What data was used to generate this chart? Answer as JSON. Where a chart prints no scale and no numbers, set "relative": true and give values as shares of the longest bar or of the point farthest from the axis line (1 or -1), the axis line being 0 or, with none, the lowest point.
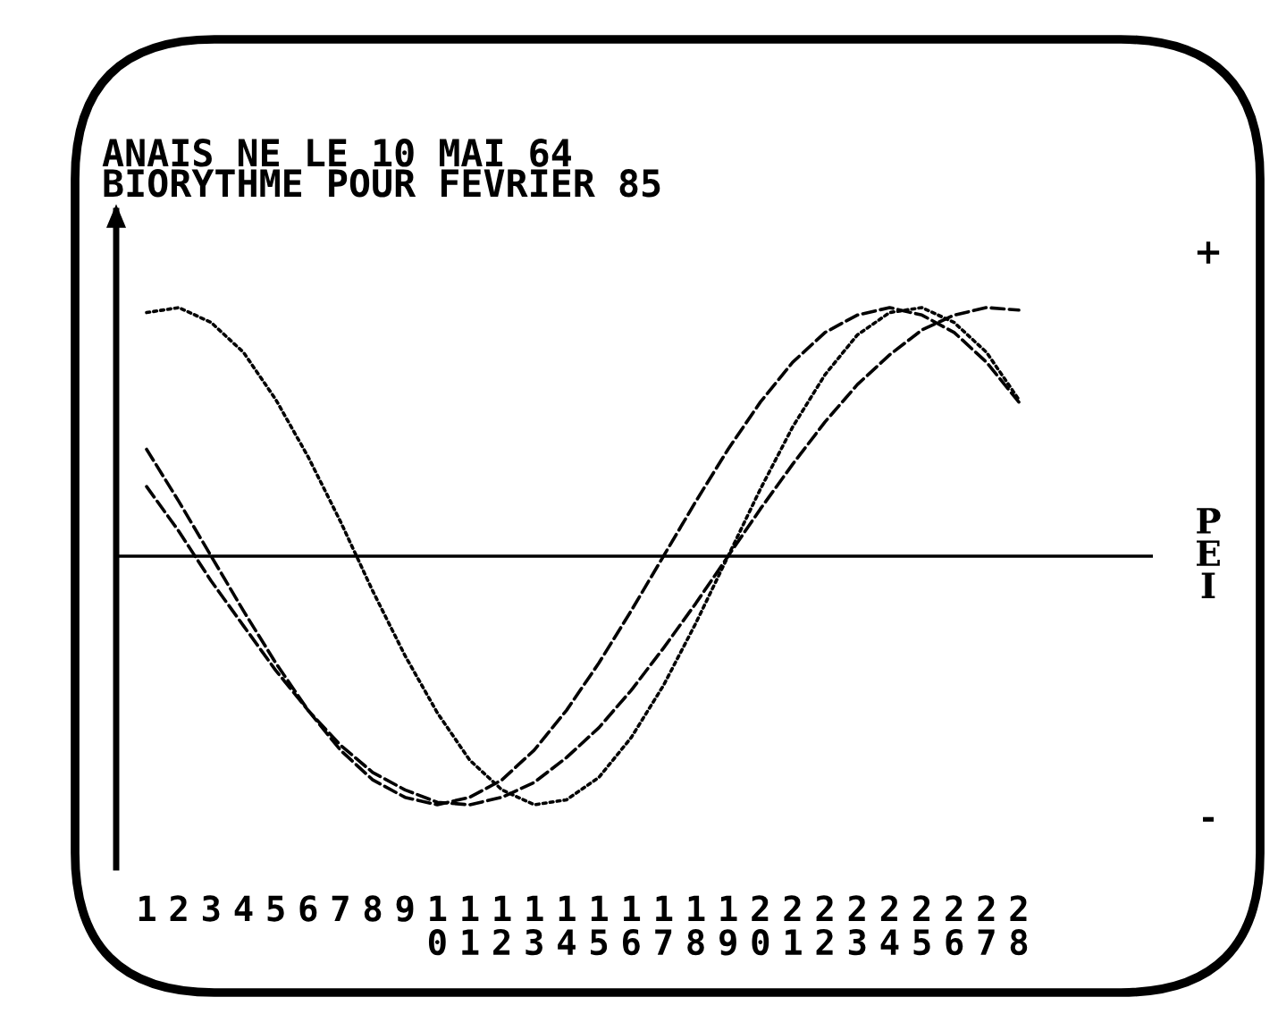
{
  "chart_data": {
    "type": "line",
    "title": "ANAIS NE LE 10 MAI 64",
    "subtitle": "BIORYTHME POUR FEVRIER 85",
    "categories": [
      "1",
      "2",
      "3",
      "4",
      "5",
      "6",
      "7",
      "8",
      "9",
      "10",
      "11",
      "12",
      "13",
      "14",
      "15",
      "16",
      "17",
      "18",
      "19",
      "20",
      "21",
      "22",
      "23",
      "24",
      "25",
      "26",
      "27",
      "28"
    ],
    "relative": true,
    "series": [
      {
        "color": "#000000",
        "line_style": "dotted",
        "values": [
          0.98,
          1.0,
          0.94,
          0.82,
          0.63,
          0.4,
          0.14,
          -0.14,
          -0.4,
          -0.63,
          -0.82,
          -0.94,
          -1.0,
          -0.98,
          -0.89,
          -0.73,
          -0.52,
          -0.27,
          0,
          0.27,
          0.52,
          0.73,
          0.89,
          0.98,
          1.0,
          0.94,
          0.82,
          0.63
        ]
      },
      {
        "color": "#000000",
        "line_style": "dashed",
        "values": [
          0.43,
          0.22,
          0,
          -0.22,
          -0.43,
          -0.62,
          -0.78,
          -0.9,
          -0.97,
          -1.0,
          -0.97,
          -0.9,
          -0.78,
          -0.62,
          -0.43,
          -0.22,
          0,
          0.22,
          0.43,
          0.62,
          0.78,
          0.9,
          0.97,
          1.0,
          0.97,
          0.9,
          0.78,
          0.62
        ]
      },
      {
        "color": "#000000",
        "line_style": "dashed",
        "values": [
          0.28,
          0.1,
          -0.1,
          -0.28,
          -0.46,
          -0.62,
          -0.76,
          -0.87,
          -0.94,
          -0.99,
          -1.0,
          -0.97,
          -0.91,
          -0.81,
          -0.69,
          -0.54,
          -0.37,
          -0.19,
          0,
          0.19,
          0.37,
          0.54,
          0.69,
          0.81,
          0.91,
          0.97,
          1.0,
          0.99
        ]
      }
    ],
    "annotations": [
      "+",
      "P\nE\nI",
      "-"
    ]
  }
}
